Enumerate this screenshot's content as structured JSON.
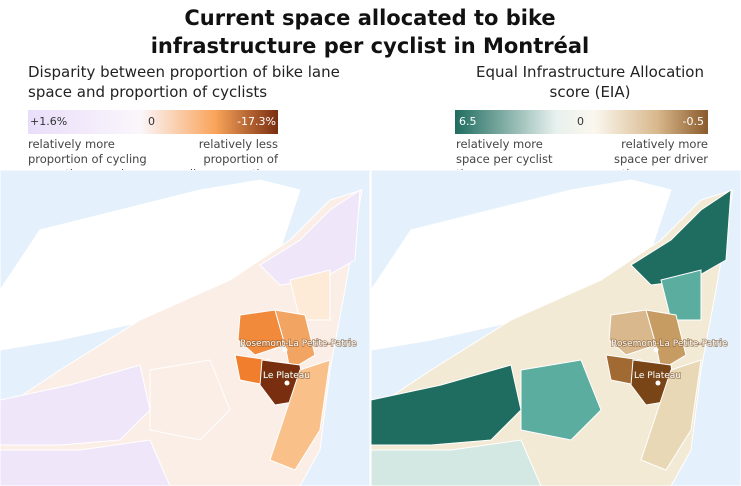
{
  "title": "Current space allocated to bike infrastructure per cyclist in Montréal",
  "panels": [
    {
      "subtitle": "Disparity between proportion of bike lane space and proportion of cyclists",
      "legend": {
        "ticks": [
          "+1.6%",
          "0",
          "-17.3%"
        ],
        "left_note": "relatively more proportion of cycling space than number of cyclists",
        "right_note": "relatively less proportion of cycling space than number of cyclists"
      },
      "map_labels": [
        "Rosemont-La Petite-Patrie",
        "Le Plateau"
      ]
    },
    {
      "subtitle": "Equal Infrastructure Allocation score (EIA)",
      "legend": {
        "ticks": [
          "6.5",
          "0",
          "-0.5"
        ],
        "left_note": "relatively more space per cyclist than space per driver",
        "right_note": "relatively more space per driver than space per cyclist"
      },
      "map_labels": [
        "Rosemont-La Petite-Patrie",
        "Le Plateau"
      ]
    }
  ]
}
